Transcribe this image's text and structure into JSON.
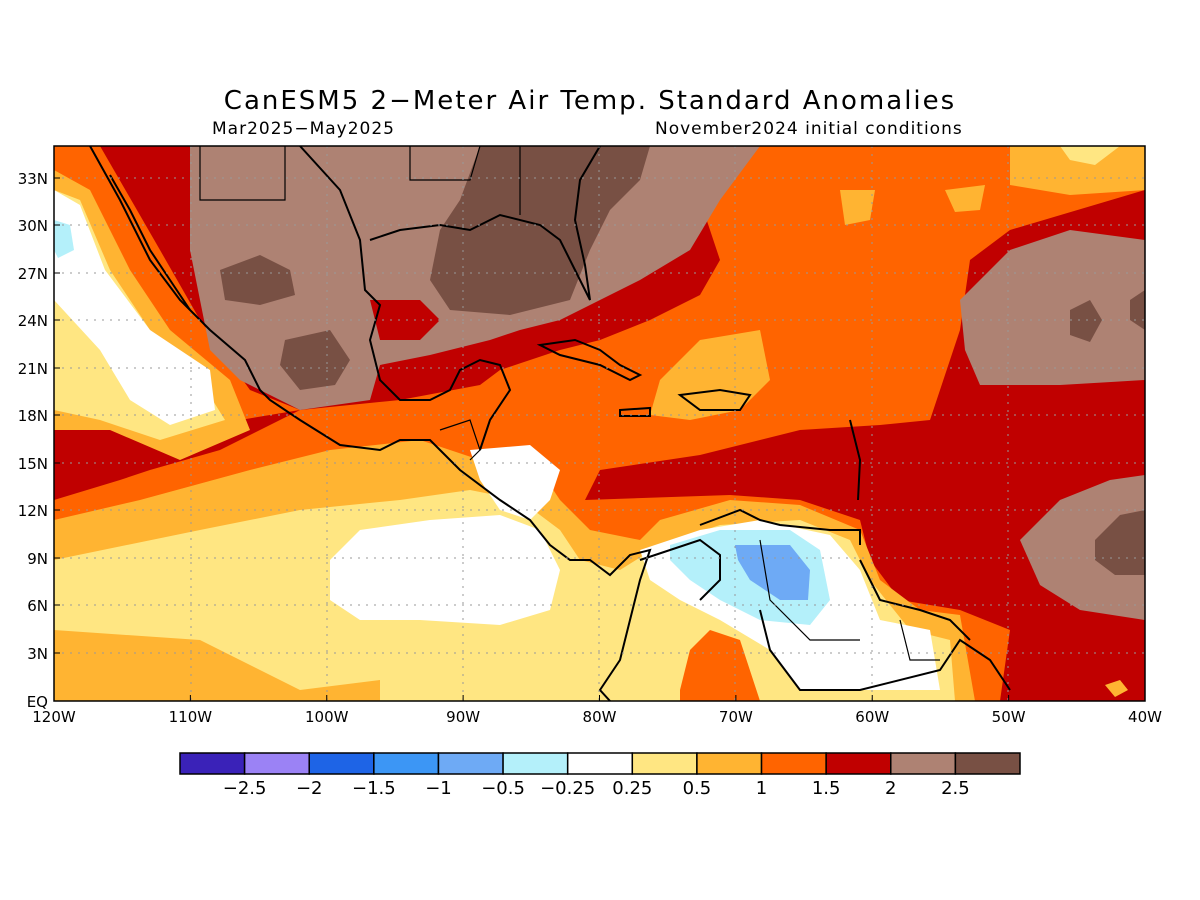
{
  "title": "CanESM5 2−Meter Air Temp. Standard Anomalies",
  "period": "Mar2025−May2025",
  "init": "November2024 initial conditions",
  "lat_labels": [
    "33N",
    "30N",
    "27N",
    "24N",
    "21N",
    "18N",
    "15N",
    "12N",
    "9N",
    "6N",
    "3N",
    "EQ"
  ],
  "lon_labels": [
    "120W",
    "110W",
    "100W",
    "90W",
    "80W",
    "70W",
    "60W",
    "50W",
    "40W"
  ],
  "colorbar": {
    "colors": [
      "#3a22b8",
      "#9b82f5",
      "#1e64e6",
      "#3c96f5",
      "#6eaaf5",
      "#b4f0fa",
      "#ffffff",
      "#ffe682",
      "#ffb432",
      "#ff6400",
      "#c00000",
      "#ae8273",
      "#785044"
    ],
    "labels": [
      "−2.5",
      "−2",
      "−1.5",
      "−1",
      "−0.5",
      "−0.25",
      "0.25",
      "0.5",
      "1",
      "1.5",
      "2",
      "2.5"
    ]
  }
}
